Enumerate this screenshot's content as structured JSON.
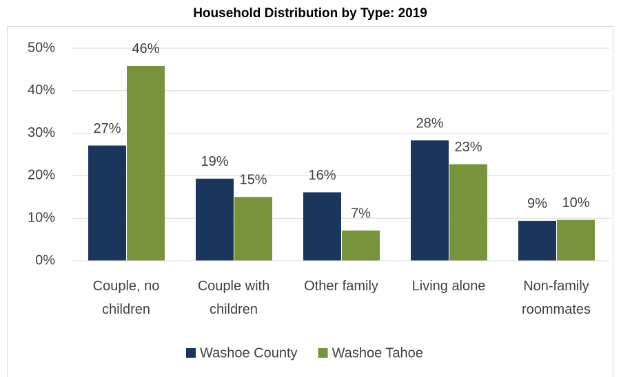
{
  "chart_data": {
    "type": "bar",
    "title": "Household Distribution by Type: 2019",
    "categories": [
      "Couple, no children",
      "Couple with children",
      "Other family",
      "Living alone",
      "Non-family roommates"
    ],
    "series": [
      {
        "name": "Washoe County",
        "color": "#1b365d",
        "values": [
          27.1,
          19.3,
          16.1,
          28.3,
          9.4
        ],
        "value_labels": [
          "27%",
          "19%",
          "16%",
          "28%",
          "9%"
        ]
      },
      {
        "name": "Washoe Tahoe",
        "color": "#77933c",
        "values": [
          45.8,
          15.0,
          7.1,
          22.7,
          9.6
        ],
        "value_labels": [
          "46%",
          "15%",
          "7%",
          "23%",
          "10%"
        ]
      }
    ],
    "ylim": [
      0,
      50
    ],
    "yticks": [
      {
        "value": 0,
        "label": "0%"
      },
      {
        "value": 10,
        "label": "10%"
      },
      {
        "value": 20,
        "label": "20%"
      },
      {
        "value": 30,
        "label": "30%"
      },
      {
        "value": 40,
        "label": "40%"
      },
      {
        "value": 50,
        "label": "50%"
      }
    ],
    "grid": true,
    "legend": "bottom"
  }
}
